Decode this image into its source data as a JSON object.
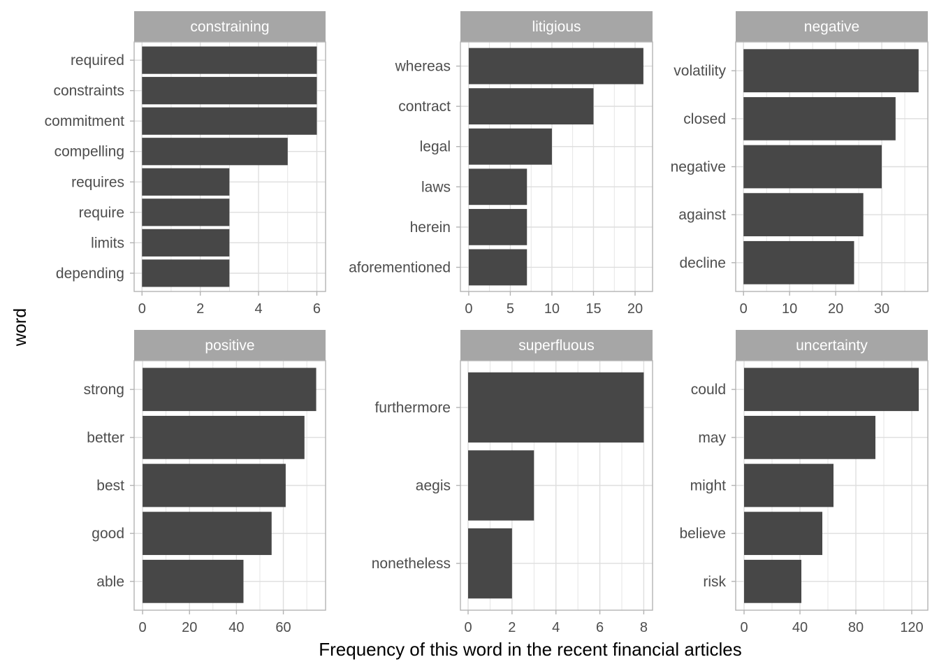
{
  "chart_data": {
    "type": "bar",
    "orientation": "horizontal",
    "xlabel": "Frequency of this word in the recent financial articles",
    "ylabel": "word",
    "grid": true,
    "colors": {
      "bar": "#474747",
      "strip": "#a6a6a6",
      "strip_text": "#ffffff",
      "grid": "#dedede",
      "panel_border": "#b3b3b3",
      "axis_text": "#4d4d4d",
      "title_text": "#000000"
    },
    "panels": [
      {
        "title": "constraining",
        "categories": [
          "required",
          "constraints",
          "commitment",
          "compelling",
          "requires",
          "require",
          "limits",
          "depending"
        ],
        "values": [
          6,
          6,
          6,
          5,
          3,
          3,
          3,
          3
        ],
        "xlim": [
          -0.27,
          6.3
        ],
        "ticks": [
          0,
          2,
          4,
          6
        ],
        "tick_labels": [
          "0",
          "2",
          "4",
          "6"
        ]
      },
      {
        "title": "litigious",
        "categories": [
          "whereas",
          "contract",
          "legal",
          "laws",
          "herein",
          "aforementioned"
        ],
        "values": [
          21,
          15,
          10,
          7,
          7,
          7
        ],
        "xlim": [
          -1.0,
          22.1
        ],
        "ticks": [
          0,
          5,
          10,
          15,
          20
        ],
        "tick_labels": [
          "0",
          "5",
          "10",
          "15",
          "20"
        ]
      },
      {
        "title": "negative",
        "categories": [
          "volatility",
          "closed",
          "negative",
          "against",
          "decline"
        ],
        "values": [
          38,
          33,
          30,
          26,
          24
        ],
        "xlim": [
          -1.7,
          40.0
        ],
        "ticks": [
          0,
          10,
          20,
          30
        ],
        "tick_labels": [
          "0",
          "10",
          "20",
          "30"
        ]
      },
      {
        "title": "positive",
        "categories": [
          "strong",
          "better",
          "best",
          "good",
          "able"
        ],
        "values": [
          74,
          69,
          61,
          55,
          43
        ],
        "xlim": [
          -3.6,
          78.0
        ],
        "ticks": [
          0,
          20,
          40,
          60
        ],
        "tick_labels": [
          "0",
          "20",
          "40",
          "60"
        ]
      },
      {
        "title": "superfluous",
        "categories": [
          "furthermore",
          "aegis",
          "nonetheless"
        ],
        "values": [
          8,
          3,
          2
        ],
        "xlim": [
          -0.35,
          8.4
        ],
        "ticks": [
          0,
          2,
          4,
          6,
          8
        ],
        "tick_labels": [
          "0",
          "2",
          "4",
          "6",
          "8"
        ]
      },
      {
        "title": "uncertainty",
        "categories": [
          "could",
          "may",
          "might",
          "believe",
          "risk"
        ],
        "values": [
          125,
          94,
          64,
          56,
          41
        ],
        "xlim": [
          -6.0,
          131.5
        ],
        "ticks": [
          0,
          40,
          80,
          120
        ],
        "tick_labels": [
          "0",
          "40",
          "80",
          "120"
        ]
      }
    ]
  }
}
